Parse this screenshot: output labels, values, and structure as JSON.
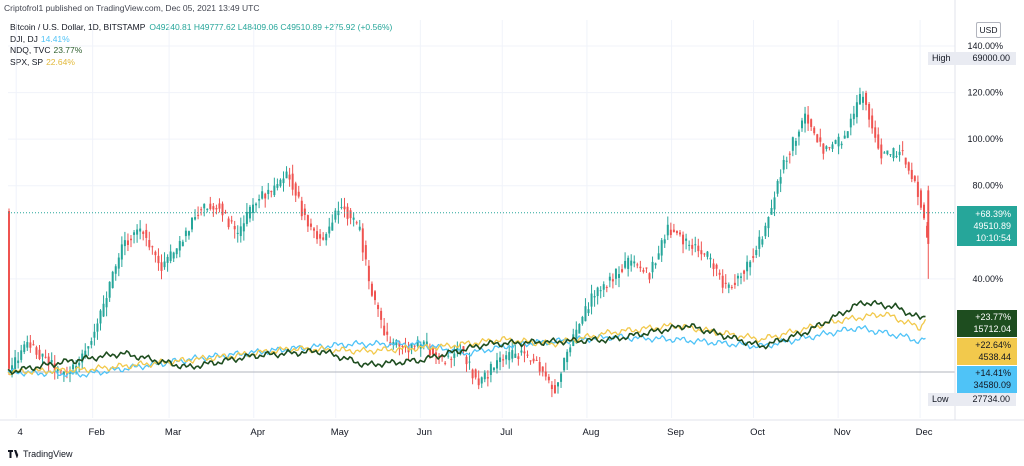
{
  "publisher_line": "Criptofrol1 published on TradingView.com, Dec 05, 2021 13:49 UTC",
  "legend": {
    "main": {
      "label": "Bitcoin / U.S. Dollar, 1D, BITSTAMP",
      "ohlc": "O49240.81 H49777.62 L48409.06 C49510.89 +275.92 (+0.56%)"
    },
    "compare": [
      {
        "label": "DJI, DJ",
        "value": "14.41%",
        "color": "#4fc3f7"
      },
      {
        "label": "NDQ, TVC",
        "value": "23.77%",
        "color": "#2d5f2e"
      },
      {
        "label": "SPX, SP",
        "value": "22.64%",
        "color": "#f2c94c"
      }
    ]
  },
  "currency_button": "USD",
  "footer_logo": "TradingView",
  "price_markers": {
    "high_label": "High",
    "high_value": "69000.00",
    "low_label": "Low",
    "low_value": "27734.00",
    "btc_box": [
      "+68.39%",
      "49510.89",
      "10:10:54"
    ],
    "ndq_box": [
      "+23.77%",
      "15712.04"
    ],
    "spx_box": [
      "+22.64%",
      "4538.44"
    ],
    "dji_box": [
      "+14.41%",
      "34580.09"
    ]
  },
  "colors": {
    "up": "#26a69a",
    "down": "#ef5350",
    "btc_box": "#26a69a",
    "ndq": "#1e4d1f",
    "spx": "#f2c94c",
    "dji": "#4fc3f7",
    "grid": "#f0f3fa"
  },
  "chart_data": {
    "type": "line",
    "title": "Bitcoin / U.S. Dollar, 1D, BITSTAMP",
    "y_axis_unit": "percent change",
    "y_ticks": [
      "40.00%",
      "80.00%",
      "100.00%",
      "120.00%",
      "140.00%"
    ],
    "x_ticks": [
      "4",
      "Feb",
      "Mar",
      "Apr",
      "May",
      "Jun",
      "Jul",
      "Aug",
      "Sep",
      "Oct",
      "Nov",
      "Dec"
    ],
    "ylim": [
      -30,
      150
    ],
    "x_range": [
      "2021-01-01",
      "2021-12-05"
    ],
    "btc_pct": {
      "x": [
        "2021-01-01",
        "2021-01-08",
        "2021-01-15",
        "2021-01-22",
        "2021-01-29",
        "2021-02-05",
        "2021-02-12",
        "2021-02-19",
        "2021-02-26",
        "2021-03-05",
        "2021-03-12",
        "2021-03-19",
        "2021-03-26",
        "2021-04-02",
        "2021-04-09",
        "2021-04-14",
        "2021-04-19",
        "2021-04-26",
        "2021-05-03",
        "2021-05-10",
        "2021-05-13",
        "2021-05-19",
        "2021-05-26",
        "2021-06-02",
        "2021-06-09",
        "2021-06-16",
        "2021-06-22",
        "2021-06-30",
        "2021-07-07",
        "2021-07-14",
        "2021-07-20",
        "2021-07-27",
        "2021-08-03",
        "2021-08-10",
        "2021-08-17",
        "2021-08-24",
        "2021-08-31",
        "2021-09-07",
        "2021-09-14",
        "2021-09-21",
        "2021-09-28",
        "2021-10-05",
        "2021-10-12",
        "2021-10-20",
        "2021-10-27",
        "2021-11-03",
        "2021-11-10",
        "2021-11-17",
        "2021-11-24",
        "2021-12-01",
        "2021-12-04",
        "2021-12-05"
      ],
      "y": [
        0,
        12,
        5,
        -2,
        8,
        28,
        55,
        62,
        45,
        55,
        70,
        72,
        58,
        75,
        78,
        85,
        68,
        55,
        72,
        60,
        40,
        15,
        10,
        12,
        5,
        10,
        -5,
        5,
        8,
        4,
        -8,
        15,
        32,
        40,
        48,
        42,
        62,
        55,
        50,
        35,
        45,
        60,
        90,
        110,
        95,
        100,
        120,
        92,
        95,
        75,
        52,
        68.39
      ]
    },
    "series": [
      {
        "name": "NDQ, TVC",
        "final": 23.77,
        "x": [
          "2021-01-01",
          "2021-01-20",
          "2021-02-12",
          "2021-03-08",
          "2021-04-01",
          "2021-04-26",
          "2021-05-12",
          "2021-06-01",
          "2021-06-25",
          "2021-07-19",
          "2021-08-10",
          "2021-09-07",
          "2021-10-04",
          "2021-10-20",
          "2021-11-10",
          "2021-11-22",
          "2021-12-01",
          "2021-12-03"
        ],
        "y": [
          0,
          4,
          8,
          2,
          7,
          9,
          3,
          5,
          12,
          13,
          14,
          20,
          11,
          17,
          30,
          28,
          23,
          23.77
        ]
      },
      {
        "name": "SPX, SP",
        "final": 22.64,
        "x": [
          "2021-01-01",
          "2021-01-29",
          "2021-02-26",
          "2021-03-25",
          "2021-04-15",
          "2021-05-12",
          "2021-06-10",
          "2021-07-01",
          "2021-07-19",
          "2021-08-10",
          "2021-09-02",
          "2021-10-04",
          "2021-11-01",
          "2021-11-18",
          "2021-12-01",
          "2021-12-03"
        ],
        "y": [
          0,
          1,
          4,
          7,
          10,
          9,
          11,
          14,
          12,
          17,
          20,
          14,
          22,
          25,
          19,
          22.64
        ]
      },
      {
        "name": "DJI, DJ",
        "final": 14.41,
        "x": [
          "2021-01-01",
          "2021-01-29",
          "2021-03-12",
          "2021-04-15",
          "2021-05-07",
          "2021-06-01",
          "2021-06-18",
          "2021-07-07",
          "2021-08-10",
          "2021-09-02",
          "2021-10-04",
          "2021-11-08",
          "2021-11-26",
          "2021-12-01",
          "2021-12-03"
        ],
        "y": [
          0,
          -1,
          6,
          10,
          12,
          12,
          8,
          12,
          15,
          14,
          11,
          19,
          15,
          13,
          14.41
        ]
      }
    ]
  }
}
